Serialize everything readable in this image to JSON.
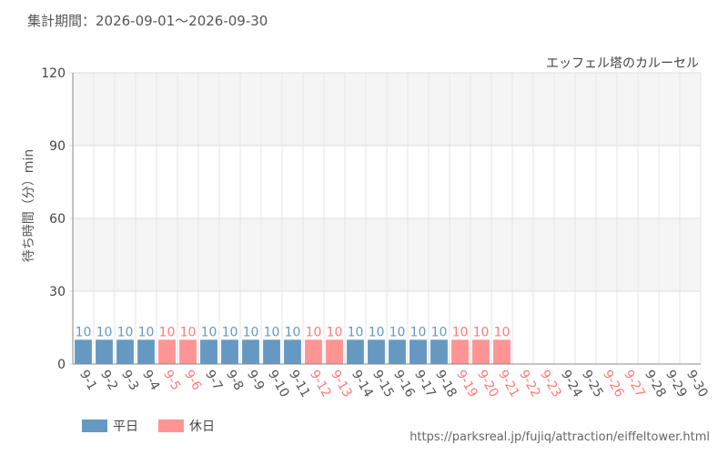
{
  "period": "集計期間：2026-09-01～2026-09-30",
  "colors": {
    "weekday": "#6699c2",
    "holiday": "#ff9494",
    "weekday_label": "#555555",
    "holiday_label": "#ff7b7b",
    "grid_band": "#f5f5f5"
  },
  "legend": {
    "weekday": "平日",
    "holiday": "休日"
  },
  "source_url": "https://parksreal.jp/fujiq/attraction/eiffeltower.html",
  "chart_data": {
    "type": "bar",
    "title": "エッフェル塔のカルーセル",
    "ylabel": "待ち時間（分）min",
    "ylim": [
      0,
      120
    ],
    "yticks": [
      0,
      30,
      60,
      90,
      120
    ],
    "categories": [
      "9-1",
      "9-2",
      "9-3",
      "9-4",
      "9-5",
      "9-6",
      "9-7",
      "9-8",
      "9-9",
      "9-10",
      "9-11",
      "9-12",
      "9-13",
      "9-14",
      "9-15",
      "9-16",
      "9-17",
      "9-18",
      "9-19",
      "9-20",
      "9-21",
      "9-22",
      "9-23",
      "9-24",
      "9-25",
      "9-26",
      "9-27",
      "9-28",
      "9-29",
      "9-30"
    ],
    "day_type": [
      "weekday",
      "weekday",
      "weekday",
      "weekday",
      "holiday",
      "holiday",
      "weekday",
      "weekday",
      "weekday",
      "weekday",
      "weekday",
      "holiday",
      "holiday",
      "weekday",
      "weekday",
      "weekday",
      "weekday",
      "weekday",
      "holiday",
      "holiday",
      "holiday",
      "holiday",
      "holiday",
      "weekday",
      "weekday",
      "holiday",
      "holiday",
      "weekday",
      "weekday",
      "weekday"
    ],
    "values": [
      10,
      10,
      10,
      10,
      10,
      10,
      10,
      10,
      10,
      10,
      10,
      10,
      10,
      10,
      10,
      10,
      10,
      10,
      10,
      10,
      10,
      null,
      null,
      null,
      null,
      null,
      null,
      null,
      null,
      null
    ]
  }
}
